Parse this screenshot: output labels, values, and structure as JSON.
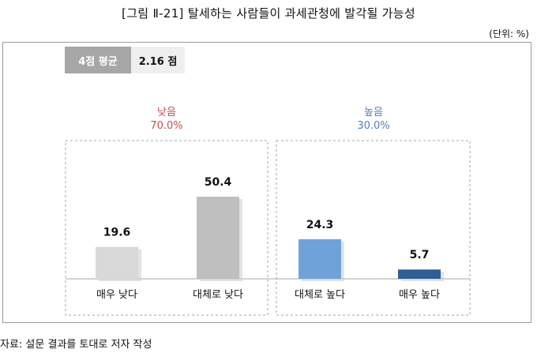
{
  "title": "[그림 Ⅱ-21] 탈세하는 사람들이 과세관청에 발각될 가능성",
  "unit": "(단위: %)",
  "average": {
    "label": "4점 평균",
    "value": "2.16 점"
  },
  "groups": [
    {
      "name": "낮음",
      "value": "70.0%",
      "color": "#c0504d"
    },
    {
      "name": "높음",
      "value": "30.0%",
      "color": "#4f81bd"
    }
  ],
  "source": "자료: 설문 결과를 토대로 저자 작성",
  "chart_data": {
    "type": "bar",
    "categories": [
      "매우 낮다",
      "대체로 낮다",
      "대체로 높다",
      "매우 높다"
    ],
    "values": [
      19.6,
      50.4,
      24.3,
      5.7
    ],
    "value_labels": [
      "19.6",
      "50.4",
      "24.3",
      "5.7"
    ],
    "bar_colors": [
      "#d9d9d9",
      "#bfbfbf",
      "#6fa2d8",
      "#2f5f94"
    ],
    "ylim": [
      0,
      60
    ],
    "grid": false,
    "legend": "none"
  }
}
